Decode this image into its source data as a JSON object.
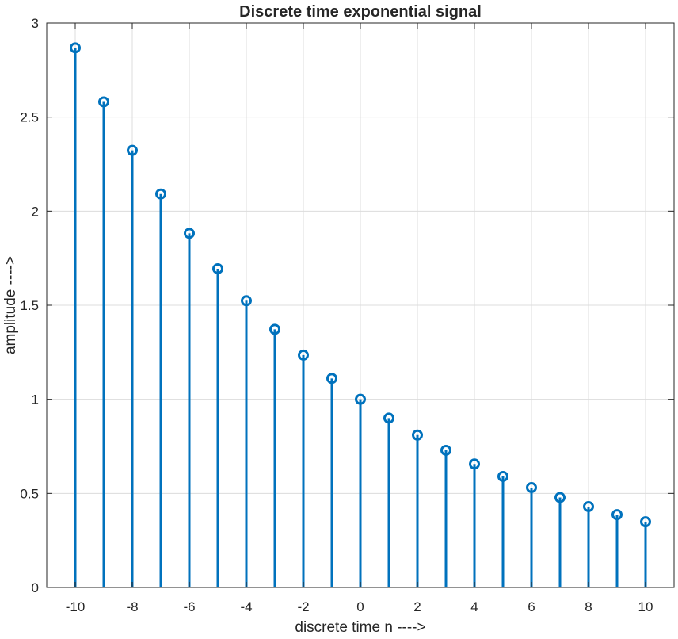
{
  "chart_data": {
    "type": "stem",
    "title": "Discrete time exponential signal",
    "xlabel": "discrete time n ---->",
    "ylabel": "amplitude ---->",
    "xlim": [
      -11,
      11
    ],
    "ylim": [
      0,
      3
    ],
    "xticks": [
      -10,
      -8,
      -6,
      -4,
      -2,
      0,
      2,
      4,
      6,
      8,
      10
    ],
    "yticks": [
      0,
      0.5,
      1,
      1.5,
      2,
      2.5,
      3
    ],
    "grid": true,
    "series": [
      {
        "color": "#0072bd",
        "marker": "circle",
        "x": [
          -10,
          -9,
          -8,
          -7,
          -6,
          -5,
          -4,
          -3,
          -2,
          -1,
          0,
          1,
          2,
          3,
          4,
          5,
          6,
          7,
          8,
          9,
          10
        ],
        "y": [
          2.868,
          2.581,
          2.323,
          2.091,
          1.882,
          1.694,
          1.524,
          1.372,
          1.235,
          1.111,
          1.0,
          0.9,
          0.81,
          0.729,
          0.656,
          0.59,
          0.531,
          0.478,
          0.43,
          0.387,
          0.349
        ]
      }
    ]
  }
}
